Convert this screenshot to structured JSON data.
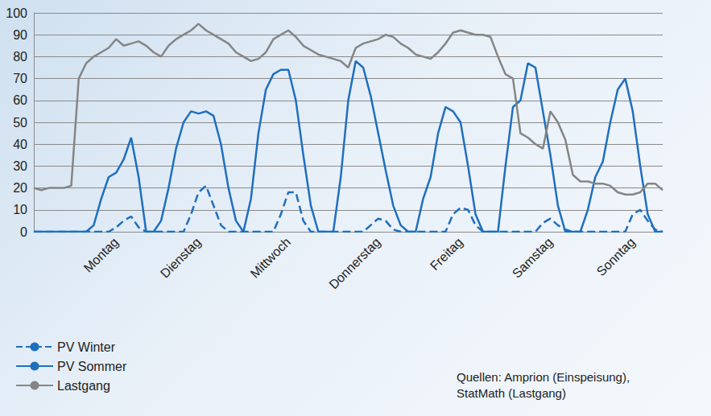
{
  "chart_data": {
    "type": "line",
    "categories": [
      null,
      null,
      null,
      null,
      null,
      null,
      null,
      null,
      null,
      null,
      null,
      "Montag",
      null,
      null,
      null,
      null,
      null,
      null,
      null,
      null,
      null,
      null,
      "Dienstag",
      null,
      null,
      null,
      null,
      null,
      null,
      null,
      null,
      null,
      null,
      null,
      "Mittwoch",
      null,
      null,
      null,
      null,
      null,
      null,
      null,
      null,
      null,
      null,
      null,
      "Donnerstag",
      null,
      null,
      null,
      null,
      null,
      null,
      null,
      null,
      null,
      null,
      "Freitag",
      null,
      null,
      null,
      null,
      null,
      null,
      null,
      null,
      null,
      null,
      null,
      "Samstag",
      null,
      null,
      null,
      null,
      null,
      null,
      null,
      null,
      null,
      null,
      "Sonntag",
      null,
      null,
      null,
      null
    ],
    "series": [
      {
        "name": "PV Winter",
        "color": "#1f6fbf",
        "line_style": "dashed",
        "values": [
          0,
          0,
          0,
          0,
          0,
          0,
          0,
          0,
          0,
          0,
          0,
          2,
          5,
          7,
          2,
          0,
          0,
          0,
          0,
          0,
          0,
          8,
          18,
          21,
          12,
          3,
          0,
          0,
          0,
          0,
          0,
          0,
          0,
          8,
          18,
          18,
          5,
          0,
          0,
          0,
          0,
          0,
          0,
          0,
          0,
          3,
          6,
          5,
          1,
          0,
          0,
          0,
          0,
          0,
          0,
          0,
          8,
          11,
          10,
          3,
          0,
          0,
          0,
          0,
          0,
          0,
          0,
          0,
          4,
          6,
          3,
          1,
          0,
          0,
          0,
          0,
          0,
          0,
          0,
          0,
          8,
          10,
          5,
          1,
          0
        ]
      },
      {
        "name": "PV Sommer",
        "color": "#1f6fbf",
        "line_style": "solid",
        "values": [
          0,
          0,
          0,
          0,
          0,
          0,
          0,
          0,
          3,
          15,
          25,
          27,
          33,
          43,
          25,
          0,
          0,
          5,
          20,
          38,
          50,
          55,
          54,
          55,
          53,
          40,
          20,
          5,
          0,
          15,
          45,
          65,
          72,
          74,
          74,
          60,
          35,
          12,
          0,
          0,
          0,
          25,
          60,
          78,
          75,
          62,
          45,
          28,
          12,
          3,
          0,
          0,
          15,
          25,
          45,
          57,
          55,
          50,
          30,
          8,
          0,
          0,
          0,
          30,
          57,
          60,
          77,
          75,
          55,
          35,
          12,
          0,
          0,
          0,
          10,
          25,
          32,
          50,
          65,
          70,
          55,
          30,
          8,
          0,
          0
        ]
      },
      {
        "name": "Lastgang",
        "color": "#858585",
        "line_style": "solid",
        "values": [
          20,
          19,
          20,
          20,
          20,
          21,
          70,
          77,
          80,
          82,
          84,
          88,
          85,
          86,
          87,
          85,
          82,
          80,
          85,
          88,
          90,
          92,
          95,
          92,
          90,
          88,
          86,
          82,
          80,
          78,
          79,
          82,
          88,
          90,
          92,
          89,
          85,
          83,
          81,
          80,
          79,
          78,
          75,
          84,
          86,
          87,
          88,
          90,
          89,
          86,
          84,
          81,
          80,
          79,
          82,
          86,
          91,
          92,
          91,
          90,
          90,
          89,
          80,
          72,
          70,
          45,
          43,
          40,
          38,
          55,
          50,
          42,
          26,
          23,
          23,
          22,
          22,
          21,
          18,
          17,
          17,
          18,
          22,
          22,
          19
        ]
      }
    ],
    "ylim": [
      0,
      100
    ],
    "yticks": [
      0,
      10,
      20,
      30,
      40,
      50,
      60,
      70,
      80,
      90,
      100
    ],
    "grid": true,
    "legend": "bottom-left",
    "annotation": [
      "Quellen: Amprion (Einspeisung),",
      "StatMath (Lastgang)"
    ]
  }
}
